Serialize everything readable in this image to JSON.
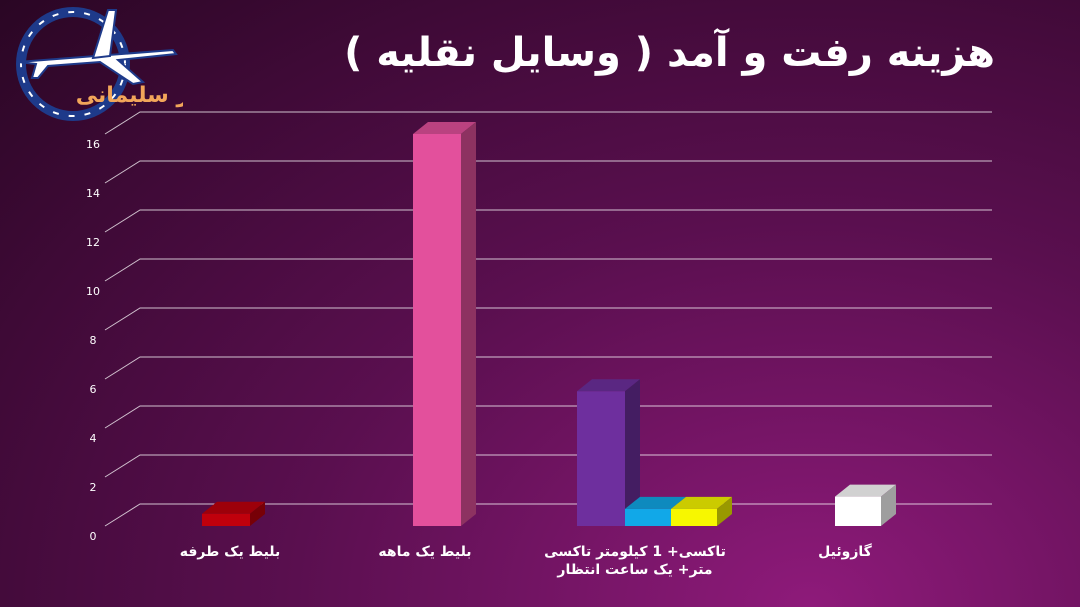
{
  "title": "هزینه رفت و آمد ( وسایل نقلیه )",
  "logo": {
    "name": "امیر سلیمانی",
    "colors": {
      "ring": "#1e3a8a",
      "text": "#f2a65a"
    }
  },
  "colors": {
    "grid": "#ffffff",
    "tick": "#ffffff"
  },
  "chart_data": {
    "type": "bar",
    "title": "هزینه رفت و آمد ( وسایل نقلیه )",
    "ylim": [
      0,
      16
    ],
    "yticks": [
      0,
      2,
      4,
      6,
      8,
      10,
      12,
      14,
      16
    ],
    "grid": true,
    "categories": [
      "بلیط یک طرفه",
      "بلیط یک ماهه",
      "تاکسی+ 1 کیلومتر تاکسی متر+ یک ساعت انتظار",
      "گازوئیل"
    ],
    "bars": [
      {
        "category": 0,
        "value": 0.5,
        "color": "#c0000c"
      },
      {
        "category": 1,
        "value": 16,
        "color": "#e3509c"
      },
      {
        "category": 2,
        "value": 5.5,
        "color": "#6e2f9e"
      },
      {
        "category": 2,
        "value": 0.7,
        "color": "#11a8e8"
      },
      {
        "category": 2,
        "value": 0.7,
        "color": "#f7f700"
      },
      {
        "category": 3,
        "value": 1.2,
        "color": "#ffffff"
      }
    ]
  }
}
